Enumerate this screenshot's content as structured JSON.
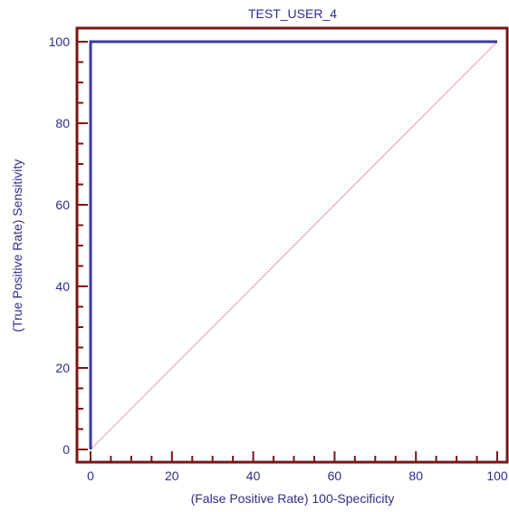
{
  "chart_data": {
    "type": "line",
    "title": "TEST_USER_4",
    "xlabel": "(False Positive Rate) 100-Specificity",
    "ylabel": "(True Positive Rate) Sensitivity",
    "xlim": [
      0,
      100
    ],
    "ylim": [
      0,
      100
    ],
    "xticks": [
      0,
      20,
      40,
      60,
      80,
      100
    ],
    "yticks": [
      0,
      20,
      40,
      60,
      80,
      100
    ],
    "xtick_labels": [
      "0",
      "20",
      "40",
      "60",
      "80",
      "100"
    ],
    "ytick_labels": [
      "0",
      "20",
      "40",
      "60",
      "80",
      "100"
    ],
    "grid": false,
    "series": [
      {
        "x": [
          0,
          0,
          100
        ],
        "y": [
          0,
          100,
          100
        ],
        "color": "#3a3aa0",
        "style": "solid"
      },
      {
        "x": [
          0,
          100
        ],
        "y": [
          0,
          100
        ],
        "color": "#e0a0a0",
        "style": "reference-diagonal"
      }
    ],
    "frame_color": "#7a1515"
  }
}
